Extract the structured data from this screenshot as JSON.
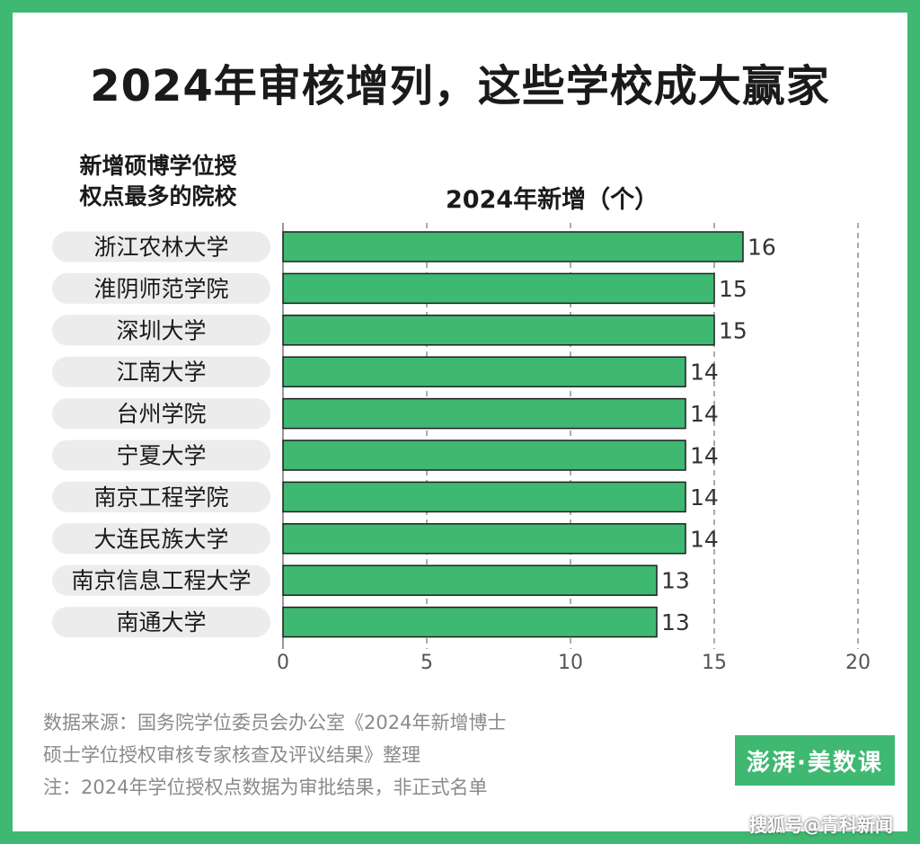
{
  "title": "2024年审核增列，这些学校成大赢家",
  "column_header": {
    "line1": "新增硕博学位授",
    "line2": "权点最多的院校"
  },
  "footer": {
    "source_line1": "数据来源：国务院学位委员会办公室《2024年新增博士",
    "source_line2": "硕士学位授权审核专家核查及评议结果》整理",
    "note": "注：2024年学位授权点数据为审批结果，非正式名单",
    "brand": "澎湃·美数课",
    "watermark": "搜狐号@青科新闻"
  },
  "colors": {
    "background": "#3fb872",
    "bar": "#3fb872",
    "bar_stroke": "#1f1f1f",
    "label_pill": "#ececec",
    "grid": "#555555"
  },
  "chart_data": {
    "type": "bar",
    "orientation": "horizontal",
    "xlabel": "2024年新增（个）",
    "xlim": [
      0,
      20
    ],
    "xticks": [
      0,
      5,
      10,
      15,
      20
    ],
    "grid": "vertical dashed",
    "categories": [
      "浙江农林大学",
      "淮阴师范学院",
      "深圳大学",
      "江南大学",
      "台州学院",
      "宁夏大学",
      "南京工程学院",
      "大连民族大学",
      "南京信息工程大学",
      "南通大学"
    ],
    "values": [
      16,
      15,
      15,
      14,
      14,
      14,
      14,
      14,
      13,
      13
    ]
  }
}
